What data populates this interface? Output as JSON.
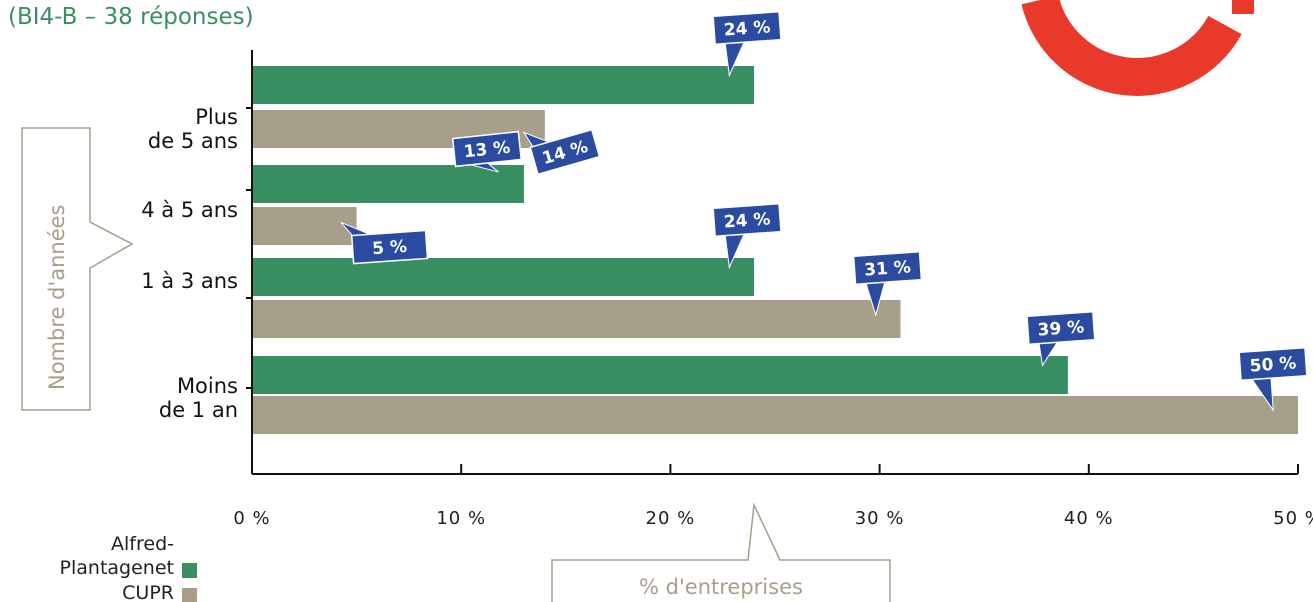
{
  "subtitle": "(BI4-B – 38 réponses)",
  "colors": {
    "alfred": "#3a8f62",
    "cupr": "#a89f8a",
    "callout": "#2a4ba0",
    "logo": "#e8392b",
    "axis_title": "#a89f8a"
  },
  "chart_data": {
    "type": "bar",
    "orientation": "horizontal",
    "categories": [
      {
        "lines": [
          "Plus",
          "de 5  ans"
        ]
      },
      {
        "lines": [
          "4 à 5 ans"
        ]
      },
      {
        "lines": [
          "1 à 3 ans"
        ]
      },
      {
        "lines": [
          "Moins",
          "de 1  an"
        ]
      }
    ],
    "series": [
      {
        "name": "Alfred-\nPlantagenet",
        "legend_lines": [
          "Alfred-",
          "Plantagenet"
        ],
        "color": "#3a8f62",
        "values": [
          24,
          13,
          24,
          39
        ],
        "labels": [
          "24 %",
          "13 %",
          "24 %",
          "39 %"
        ]
      },
      {
        "name": "CUPR",
        "legend_lines": [
          "CUPR"
        ],
        "color": "#a89f8a",
        "values": [
          14,
          5,
          31,
          50
        ],
        "labels": [
          "14 %",
          "5 %",
          "31 %",
          "50 %"
        ]
      }
    ],
    "xlim": [
      0,
      50
    ],
    "xticks": [
      0,
      10,
      20,
      30,
      40,
      50
    ],
    "xtick_labels": [
      "0 %",
      "10 %",
      "20 %",
      "30 %",
      "40 %",
      "50 %"
    ],
    "xlabel": "% d'entreprises",
    "ylabel": "Nombre d'années",
    "grid": false,
    "legend_position": "bottom-left"
  }
}
